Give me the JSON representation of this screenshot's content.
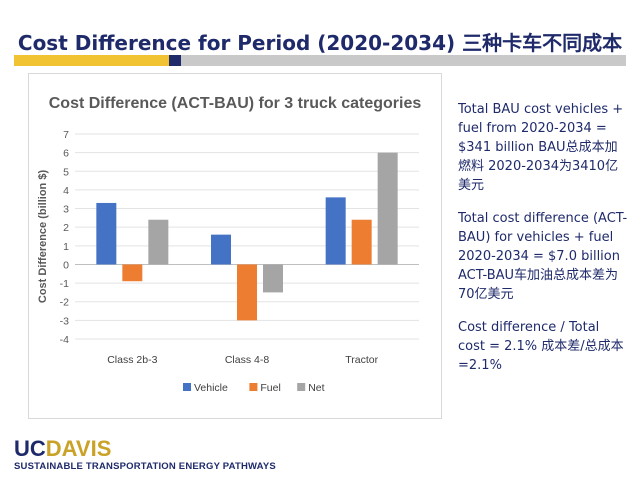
{
  "slide": {
    "title": "Cost Difference for Period (2020-2034) 三种卡车不同成本"
  },
  "notes": [
    "Total BAU cost vehicles + fuel from 2020-2034 = $341 billion BAU总成本加燃料 2020-2034为3410亿美元",
    "Total cost difference (ACT-BAU) for vehicles + fuel 2020-2034 = $7.0 billion ACT-BAU车加油总成本差为70亿美元",
    "Cost difference / Total cost = 2.1% 成本差/总成本=2.1%"
  ],
  "logo": {
    "uc": "UC",
    "davis": "DAVIS",
    "tagline": "SUSTAINABLE TRANSPORTATION ENERGY PATHWAYS"
  },
  "colors": {
    "vehicle": "#4472c4",
    "fuel": "#ed7d31",
    "net": "#a5a5a5",
    "title_navy": "#1f2a6b",
    "accent_gold": "#f1c232"
  },
  "chart_data": {
    "type": "bar",
    "title": "Cost Difference (ACT-BAU) for 3 truck categories",
    "xlabel": "",
    "ylabel": "Cost Difference (billion $)",
    "ylim": [
      -4,
      7
    ],
    "yticks": [
      -4,
      -3,
      -2,
      -1,
      0,
      1,
      2,
      3,
      4,
      5,
      6,
      7
    ],
    "grid": true,
    "legend_position": "bottom",
    "categories": [
      "Class 2b-3",
      "Class 4-8",
      "Tractor"
    ],
    "series": [
      {
        "name": "Vehicle",
        "color": "#4472c4",
        "values": [
          3.3,
          1.6,
          3.6
        ]
      },
      {
        "name": "Fuel",
        "color": "#ed7d31",
        "values": [
          -0.9,
          -3.0,
          2.4
        ]
      },
      {
        "name": "Net",
        "color": "#a5a5a5",
        "values": [
          2.4,
          -1.5,
          6.0
        ]
      }
    ]
  }
}
